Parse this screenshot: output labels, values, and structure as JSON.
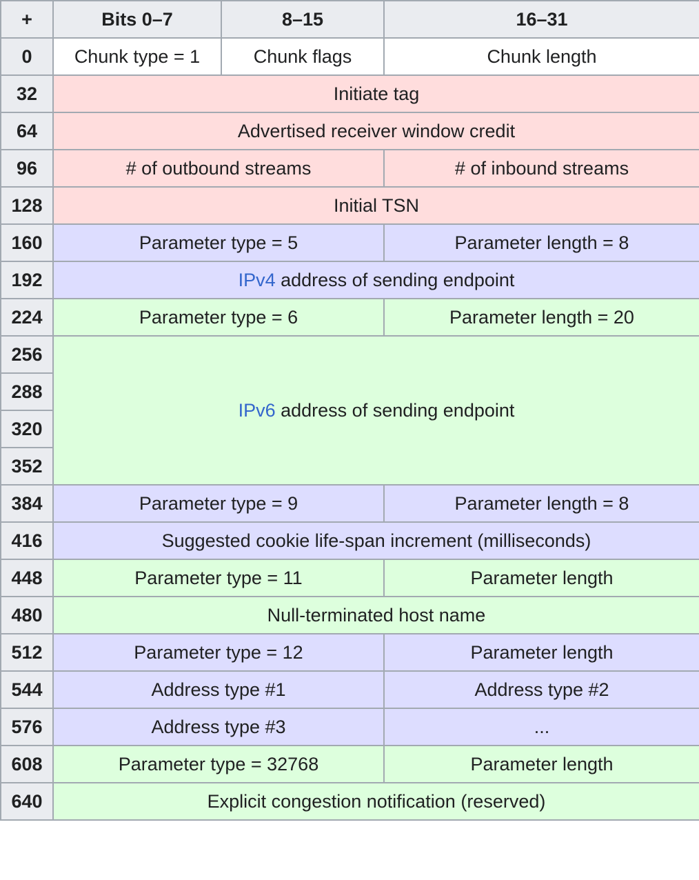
{
  "header": {
    "plus": "+",
    "bits_0_7": "Bits 0–7",
    "bits_8_15": "8–15",
    "bits_16_31": "16–31"
  },
  "rows": {
    "r0": {
      "offset": "0",
      "chunk_type": "Chunk type = 1",
      "chunk_flags": "Chunk flags",
      "chunk_length": "Chunk length"
    },
    "r32": {
      "offset": "32",
      "field": "Initiate tag"
    },
    "r64": {
      "offset": "64",
      "field": "Advertised receiver window credit"
    },
    "r96": {
      "offset": "96",
      "left": "# of outbound streams",
      "right": "# of inbound streams"
    },
    "r128": {
      "offset": "128",
      "field": "Initial TSN"
    },
    "r160": {
      "offset": "160",
      "left": "Parameter type = 5",
      "right": "Parameter length = 8"
    },
    "r192": {
      "offset": "192",
      "link": "IPv4",
      "rest": " address of sending endpoint"
    },
    "r224": {
      "offset": "224",
      "left": "Parameter type = 6",
      "right": "Parameter length = 20"
    },
    "r256": {
      "offset": "256",
      "link": "IPv6",
      "rest": " address of sending endpoint"
    },
    "r288": {
      "offset": "288"
    },
    "r320": {
      "offset": "320"
    },
    "r352": {
      "offset": "352"
    },
    "r384": {
      "offset": "384",
      "left": "Parameter type = 9",
      "right": "Parameter length = 8"
    },
    "r416": {
      "offset": "416",
      "field": "Suggested cookie life-span increment (milliseconds)"
    },
    "r448": {
      "offset": "448",
      "left": "Parameter type = 11",
      "right": "Parameter length"
    },
    "r480": {
      "offset": "480",
      "field": "Null-terminated host name"
    },
    "r512": {
      "offset": "512",
      "left": "Parameter type = 12",
      "right": "Parameter length"
    },
    "r544": {
      "offset": "544",
      "left": "Address type #1",
      "right": "Address type #2"
    },
    "r576": {
      "offset": "576",
      "left": "Address type #3",
      "right": "..."
    },
    "r608": {
      "offset": "608",
      "left": "Parameter type = 32768",
      "right": "Parameter length"
    },
    "r640": {
      "offset": "640",
      "field": "Explicit congestion notification (reserved)"
    }
  },
  "colors": {
    "header": "#eaecf0",
    "red": "#ffdddd",
    "blue": "#ddddff",
    "green": "#ddffdd",
    "link": "#3366cc",
    "border": "#a2a9b1"
  }
}
